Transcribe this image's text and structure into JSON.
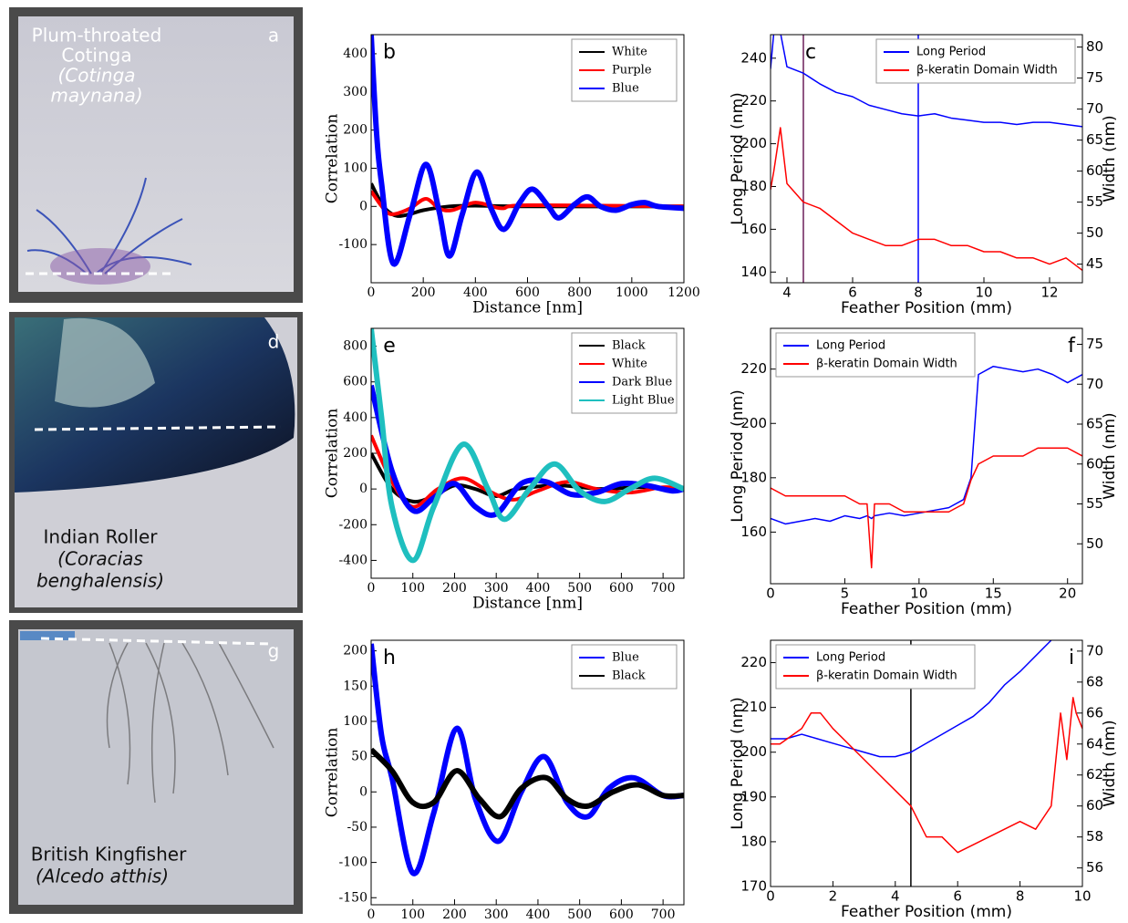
{
  "photos": [
    {
      "label": "a",
      "lines": [
        "Plum-throated",
        "Cotinga",
        "(Cotinga",
        "maynana)"
      ]
    },
    {
      "label": "d",
      "lines": [
        "Indian Roller",
        "(Coracias",
        "benghalensis)"
      ]
    },
    {
      "label": "g",
      "lines": [
        "British Kingfisher",
        "(Alcedo atthis)"
      ]
    }
  ],
  "chart_data": [
    {
      "type": "line",
      "label": "b",
      "xlabel": "Distance [nm]",
      "ylabel": "Correlation",
      "legend": "upper right",
      "xlim": [
        0,
        1200
      ],
      "ylim": [
        -200,
        450
      ],
      "xticks": [
        0,
        200,
        400,
        600,
        800,
        1000,
        1200
      ],
      "yticks": [
        -100,
        0,
        100,
        200,
        300,
        400
      ],
      "series": [
        {
          "name": "White",
          "color": "#000000",
          "x": [
            0,
            30,
            60,
            100,
            150,
            200,
            300,
            400,
            600,
            1200
          ],
          "values": [
            60,
            20,
            -10,
            -25,
            -20,
            -10,
            0,
            2,
            0,
            0
          ]
        },
        {
          "name": "Purple",
          "color": "#ff0000",
          "x": [
            0,
            30,
            60,
            90,
            150,
            210,
            260,
            310,
            400,
            500,
            600,
            1200
          ],
          "values": [
            40,
            10,
            -15,
            -20,
            -5,
            20,
            -5,
            -10,
            10,
            -5,
            3,
            0
          ]
        },
        {
          "name": "Blue",
          "color": "#0000ff",
          "x": [
            0,
            20,
            40,
            85,
            150,
            210,
            260,
            300,
            350,
            405,
            460,
            510,
            570,
            620,
            680,
            720,
            780,
            830,
            880,
            940,
            1000,
            1050,
            1100,
            1200
          ],
          "values": [
            450,
            200,
            60,
            -150,
            -20,
            110,
            -10,
            -130,
            -20,
            90,
            -5,
            -60,
            10,
            45,
            0,
            -30,
            5,
            25,
            0,
            -10,
            5,
            10,
            0,
            -5
          ]
        }
      ]
    },
    {
      "type": "line",
      "label": "c",
      "xlabel": "Feather Position (mm)",
      "ylabel": "Long Period (nm)",
      "y2label": "Width (nm)",
      "legend": "upper right",
      "xlim": [
        3.5,
        13
      ],
      "ylim": [
        135,
        251
      ],
      "y2lim": [
        42,
        82
      ],
      "xticks": [
        4,
        6,
        8,
        10,
        12
      ],
      "yticks": [
        140,
        160,
        180,
        200,
        220,
        240
      ],
      "y2ticks": [
        45,
        50,
        55,
        60,
        65,
        70,
        75,
        80
      ],
      "vlines": [
        {
          "x": 4.5,
          "color": "#6b1f5a"
        },
        {
          "x": 8,
          "color": "#0000ff"
        }
      ],
      "series": [
        {
          "name": "Long Period",
          "color": "#0000ff",
          "x": [
            3.5,
            3.6,
            3.8,
            4.0,
            4.5,
            5,
            5.5,
            6,
            6.5,
            7,
            7.5,
            8,
            8.5,
            9,
            9.5,
            10,
            10.5,
            11,
            11.5,
            12,
            12.5,
            13
          ],
          "values": [
            235,
            252,
            252,
            236,
            233,
            228,
            224,
            222,
            218,
            216,
            214,
            213,
            214,
            212,
            211,
            210,
            210,
            209,
            210,
            210,
            209,
            208
          ]
        },
        {
          "name": "β-keratin Domain Width",
          "color": "#ff0000",
          "axis": "y2",
          "x": [
            3.5,
            3.6,
            3.8,
            4.0,
            4.5,
            5,
            5.5,
            6,
            6.5,
            7,
            7.5,
            8,
            8.5,
            9,
            9.5,
            10,
            10.5,
            11,
            11.5,
            12,
            12.5,
            13
          ],
          "values": [
            57,
            60,
            67,
            58,
            55,
            54,
            52,
            50,
            49,
            48,
            48,
            49,
            49,
            48,
            48,
            47,
            47,
            46,
            46,
            45,
            46,
            44
          ]
        }
      ]
    },
    {
      "type": "line",
      "label": "e",
      "xlabel": "Distance [nm]",
      "ylabel": "Correlation",
      "legend": "upper right",
      "xlim": [
        0,
        750
      ],
      "ylim": [
        -500,
        900
      ],
      "xticks": [
        0,
        100,
        200,
        300,
        400,
        500,
        600,
        700
      ],
      "yticks": [
        -400,
        -200,
        0,
        200,
        400,
        600,
        800
      ],
      "series": [
        {
          "name": "Black",
          "color": "#000000",
          "x": [
            0,
            50,
            100,
            150,
            200,
            250,
            300,
            350,
            450,
            550,
            650,
            750
          ],
          "values": [
            200,
            0,
            -70,
            -40,
            20,
            0,
            -40,
            0,
            20,
            0,
            10,
            0
          ]
        },
        {
          "name": "White",
          "color": "#ff0000",
          "x": [
            0,
            50,
            100,
            160,
            220,
            280,
            340,
            400,
            470,
            540,
            620,
            700,
            750
          ],
          "values": [
            300,
            40,
            -100,
            0,
            60,
            -10,
            -60,
            -10,
            40,
            0,
            -20,
            10,
            0
          ]
        },
        {
          "name": "Dark Blue",
          "color": "#0000ff",
          "x": [
            0,
            50,
            100,
            150,
            200,
            250,
            300,
            360,
            420,
            480,
            540,
            600,
            660,
            720,
            750
          ],
          "values": [
            580,
            100,
            -120,
            -50,
            30,
            -100,
            -140,
            30,
            40,
            -30,
            -20,
            30,
            20,
            -10,
            0
          ]
        },
        {
          "name": "Light Blue",
          "color": "#1fbfbf",
          "x": [
            0,
            25,
            50,
            100,
            150,
            220,
            280,
            320,
            380,
            440,
            500,
            560,
            620,
            680,
            750
          ],
          "values": [
            900,
            400,
            -100,
            -400,
            -100,
            250,
            0,
            -170,
            0,
            140,
            -10,
            -70,
            0,
            60,
            0
          ]
        }
      ]
    },
    {
      "type": "line",
      "label": "f",
      "xlabel": "Feather Position (mm)",
      "ylabel": "Long Period (nm)",
      "y2label": "Width (nm)",
      "legend": "upper left",
      "xlim": [
        0,
        21
      ],
      "ylim": [
        141,
        235
      ],
      "y2lim": [
        45,
        77
      ],
      "xticks": [
        0,
        5,
        10,
        15,
        20
      ],
      "yticks": [
        160,
        180,
        200,
        220
      ],
      "y2ticks": [
        50,
        55,
        60,
        65,
        70,
        75
      ],
      "series": [
        {
          "name": "Long Period",
          "color": "#0000ff",
          "x": [
            0,
            1,
            2,
            3,
            4,
            5,
            6,
            6.5,
            6.8,
            7,
            8,
            9,
            10,
            11,
            12,
            13,
            13.5,
            14,
            15,
            16,
            17,
            18,
            19,
            20,
            21
          ],
          "values": [
            165,
            163,
            164,
            165,
            164,
            166,
            165,
            166,
            165,
            166,
            167,
            166,
            167,
            168,
            169,
            172,
            180,
            218,
            221,
            220,
            219,
            220,
            218,
            215,
            218
          ]
        },
        {
          "name": "β-keratin Domain Width",
          "color": "#ff0000",
          "axis": "y2",
          "x": [
            0,
            1,
            2,
            3,
            4,
            5,
            6,
            6.5,
            6.8,
            7,
            8,
            9,
            10,
            11,
            12,
            13,
            13.5,
            14,
            15,
            16,
            17,
            18,
            19,
            20,
            21
          ],
          "values": [
            57,
            56,
            56,
            56,
            56,
            56,
            55,
            55,
            47,
            55,
            55,
            54,
            54,
            54,
            54,
            55,
            58,
            60,
            61,
            61,
            61,
            62,
            62,
            62,
            61
          ]
        }
      ]
    },
    {
      "type": "line",
      "label": "h",
      "xlabel": "Distance [nm]",
      "ylabel": "Correlation",
      "legend": "upper right",
      "xlim": [
        0,
        750
      ],
      "ylim": [
        -160,
        215
      ],
      "xticks": [
        0,
        100,
        200,
        300,
        400,
        500,
        600,
        700
      ],
      "yticks": [
        -150,
        -100,
        -50,
        0,
        50,
        100,
        150,
        200
      ],
      "series": [
        {
          "name": "Blue",
          "color": "#0000ff",
          "x": [
            0,
            25,
            50,
            100,
            150,
            205,
            250,
            305,
            360,
            415,
            470,
            520,
            570,
            630,
            700,
            750
          ],
          "values": [
            210,
            80,
            20,
            -115,
            -30,
            90,
            -10,
            -70,
            0,
            50,
            -15,
            -35,
            5,
            20,
            -5,
            -5
          ]
        },
        {
          "name": "Black",
          "color": "#000000",
          "x": [
            0,
            50,
            100,
            150,
            205,
            260,
            310,
            360,
            420,
            470,
            520,
            580,
            640,
            700,
            750
          ],
          "values": [
            60,
            30,
            -15,
            -15,
            30,
            -10,
            -35,
            5,
            20,
            -10,
            -20,
            0,
            10,
            -5,
            -5
          ]
        }
      ]
    },
    {
      "type": "line",
      "label": "i",
      "xlabel": "Feather Position (mm)",
      "ylabel": "Long Period (nm)",
      "y2label": "Width (nm)",
      "legend": "upper left",
      "xlim": [
        0,
        10
      ],
      "ylim": [
        170,
        225
      ],
      "y2lim": [
        54.8,
        70.7
      ],
      "xticks": [
        0,
        2,
        4,
        6,
        8,
        10
      ],
      "yticks": [
        170,
        180,
        190,
        200,
        210,
        220
      ],
      "y2ticks": [
        56,
        58,
        60,
        62,
        64,
        66,
        68,
        70
      ],
      "vlines": [
        {
          "x": 4.5,
          "color": "#000000"
        }
      ],
      "series": [
        {
          "name": "Long Period",
          "color": "#0000ff",
          "x": [
            0,
            0.5,
            1,
            1.5,
            2,
            2.5,
            3,
            3.5,
            4,
            4.5,
            5,
            5.5,
            6,
            6.5,
            7,
            7.5,
            8,
            9
          ],
          "values": [
            203,
            203,
            204,
            203,
            202,
            201,
            200,
            199,
            199,
            200,
            202,
            204,
            206,
            208,
            211,
            215,
            218,
            225
          ]
        },
        {
          "name": "β-keratin Domain Width",
          "color": "#ff0000",
          "axis": "y2",
          "x": [
            0,
            0.3,
            1,
            1.3,
            1.6,
            2,
            2.5,
            3,
            3.5,
            4,
            4.5,
            5,
            5.5,
            6,
            6.5,
            7,
            7.5,
            8,
            8.5,
            9,
            9.3,
            9.5,
            9.7,
            9.8,
            10
          ],
          "values": [
            64,
            64,
            65,
            66,
            66,
            65,
            64,
            63,
            62,
            61,
            60,
            58,
            58,
            57,
            57.5,
            58,
            58.5,
            59,
            58.5,
            60,
            66,
            63,
            67,
            66,
            65
          ]
        }
      ]
    }
  ]
}
